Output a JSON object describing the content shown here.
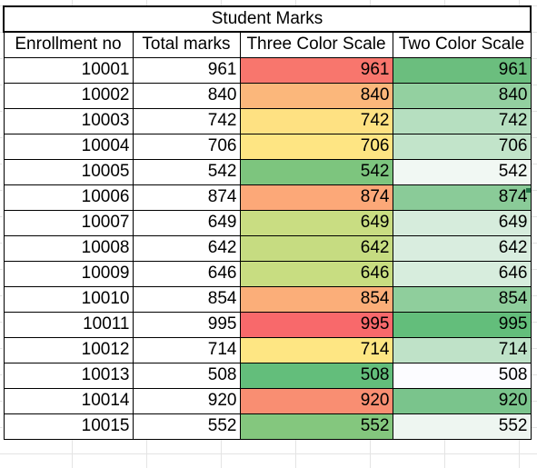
{
  "sheet": {
    "title": "Student Marks",
    "headers": [
      "Enrollment no",
      "Total marks",
      "Three Color Scale",
      "Two Color Scale"
    ],
    "rows": [
      {
        "enrollment": "10001",
        "total": "961",
        "three": "961",
        "two": "961",
        "three_color": "#F8766D",
        "two_color": "#6BBE7E"
      },
      {
        "enrollment": "10002",
        "total": "840",
        "three": "840",
        "two": "840",
        "three_color": "#FBB77B",
        "two_color": "#93D0A0"
      },
      {
        "enrollment": "10003",
        "total": "742",
        "three": "742",
        "two": "742",
        "three_color": "#FEE182",
        "two_color": "#B6DFC0"
      },
      {
        "enrollment": "10004",
        "total": "706",
        "three": "706",
        "two": "706",
        "three_color": "#FEE583",
        "two_color": "#C2E4CA"
      },
      {
        "enrollment": "10005",
        "total": "542",
        "three": "542",
        "two": "542",
        "three_color": "#7DC57E",
        "two_color": "#F1F8F3"
      },
      {
        "enrollment": "10006",
        "total": "874",
        "three": "874",
        "two": "874",
        "three_color": "#FCA878",
        "two_color": "#8ACB98"
      },
      {
        "enrollment": "10007",
        "total": "649",
        "three": "649",
        "two": "649",
        "three_color": "#C9DD82",
        "two_color": "#D6ECDC"
      },
      {
        "enrollment": "10008",
        "total": "642",
        "three": "642",
        "two": "642",
        "three_color": "#C6DC81",
        "two_color": "#D9EDDF"
      },
      {
        "enrollment": "10009",
        "total": "646",
        "three": "646",
        "two": "646",
        "three_color": "#C8DD81",
        "two_color": "#D7EDDD"
      },
      {
        "enrollment": "10010",
        "total": "854",
        "three": "854",
        "two": "854",
        "three_color": "#FBAE79",
        "two_color": "#8FCE9C"
      },
      {
        "enrollment": "10011",
        "total": "995",
        "three": "995",
        "two": "995",
        "three_color": "#F8696B",
        "two_color": "#63BE7B"
      },
      {
        "enrollment": "10012",
        "total": "714",
        "three": "714",
        "two": "714",
        "three_color": "#FEE683",
        "two_color": "#BFE2C8"
      },
      {
        "enrollment": "10013",
        "total": "508",
        "three": "508",
        "two": "508",
        "three_color": "#63BE7B",
        "two_color": "#FCFCFF"
      },
      {
        "enrollment": "10014",
        "total": "920",
        "three": "920",
        "two": "920",
        "three_color": "#F98E72",
        "two_color": "#7AC48C"
      },
      {
        "enrollment": "10015",
        "total": "552",
        "three": "552",
        "two": "552",
        "three_color": "#84C77E",
        "two_color": "#EEF6F1"
      }
    ]
  }
}
